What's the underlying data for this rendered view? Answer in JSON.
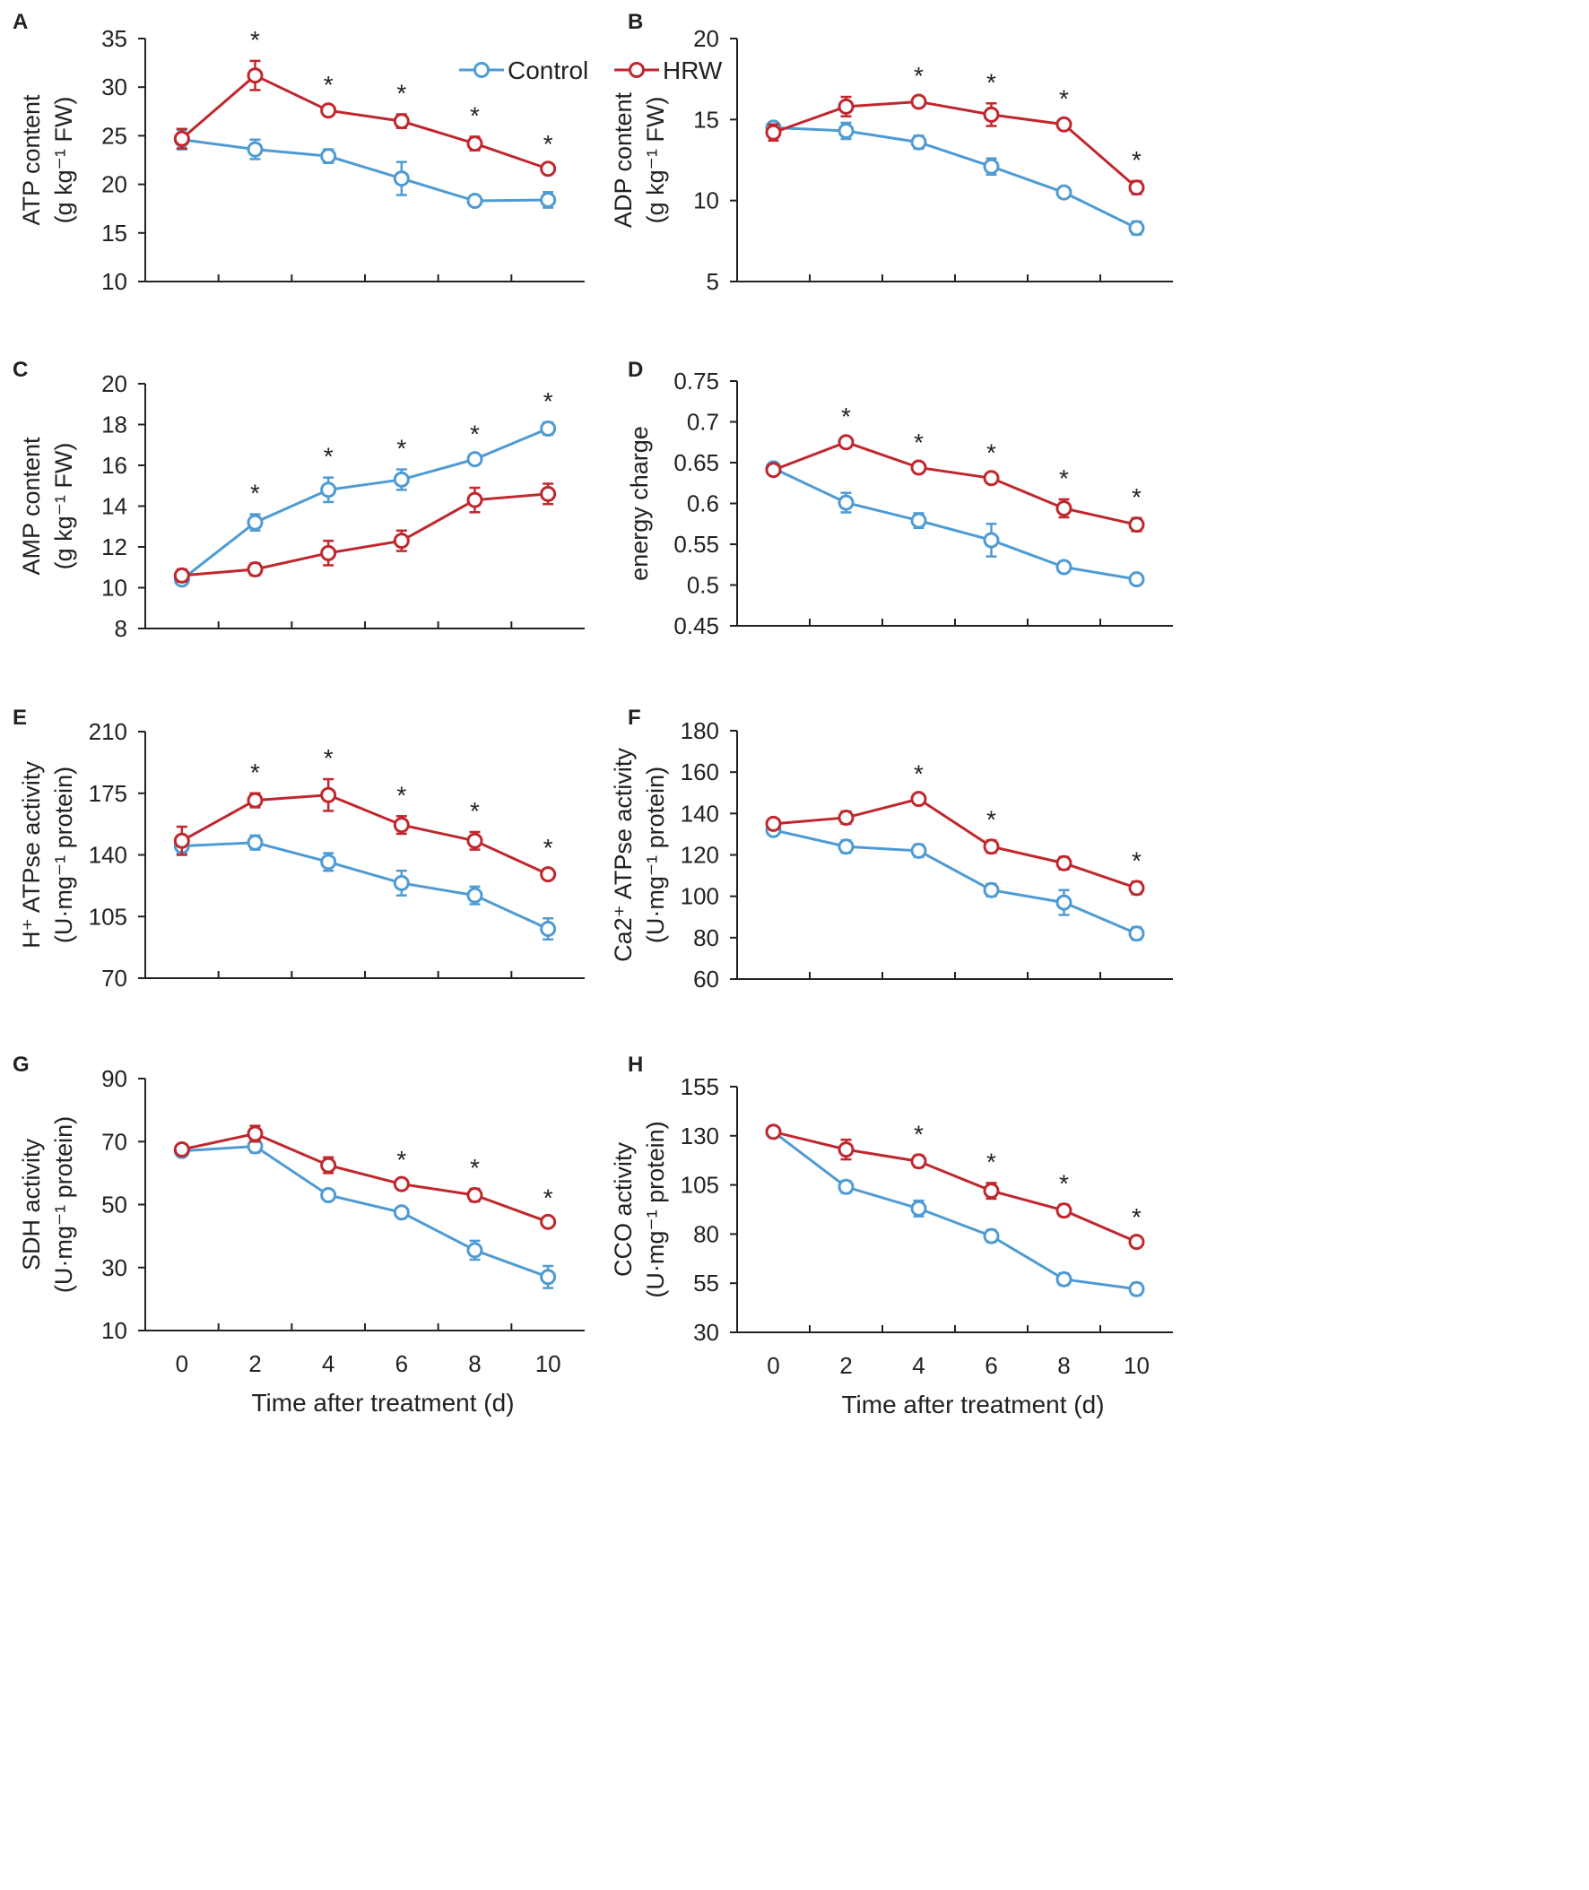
{
  "legend": {
    "items": [
      {
        "name": "Control",
        "color": "#4e9bd4"
      },
      {
        "name": "HRW",
        "color": "#c0272d"
      }
    ]
  },
  "colors": {
    "control": "#4e9bd4",
    "hrw": "#c0272d",
    "axis": "#222222"
  },
  "chart_data": [
    {
      "panel": "A",
      "type": "line",
      "ylabel_lines": [
        "ATP content",
        "(g kg⁻¹ FW)"
      ],
      "xlabel": "",
      "ylim": [
        10,
        35
      ],
      "yticks": [
        "10",
        "15",
        "20",
        "25",
        "30",
        "35"
      ],
      "xticks": [],
      "x": [
        0,
        2,
        4,
        6,
        8,
        10
      ],
      "series": [
        {
          "name": "Control",
          "values": [
            24.6,
            23.6,
            22.9,
            20.6,
            18.3,
            18.4
          ],
          "errors": [
            1.0,
            1.0,
            0.7,
            1.7,
            0.5,
            0.8
          ]
        },
        {
          "name": "HRW",
          "values": [
            24.7,
            31.2,
            27.6,
            26.5,
            24.2,
            21.6
          ],
          "errors": [
            1.0,
            1.5,
            0.5,
            0.7,
            0.7,
            0.4
          ]
        }
      ],
      "significance": [
        "",
        "*",
        "*",
        "*",
        "*",
        "*"
      ]
    },
    {
      "panel": "B",
      "type": "line",
      "ylabel_lines": [
        "ADP content",
        "(g kg⁻¹ FW)"
      ],
      "xlabel": "",
      "ylim": [
        5,
        20
      ],
      "yticks": [
        "5",
        "10",
        "15",
        "20"
      ],
      "xticks": [],
      "x": [
        0,
        2,
        4,
        6,
        8,
        10
      ],
      "series": [
        {
          "name": "Control",
          "values": [
            14.5,
            14.3,
            13.6,
            12.1,
            10.5,
            8.3
          ],
          "errors": [
            0.3,
            0.5,
            0.4,
            0.5,
            0.3,
            0.4
          ]
        },
        {
          "name": "HRW",
          "values": [
            14.2,
            15.8,
            16.1,
            15.3,
            14.7,
            10.8
          ],
          "errors": [
            0.5,
            0.6,
            0.3,
            0.7,
            0.3,
            0.4
          ]
        }
      ],
      "significance": [
        "",
        "",
        "*",
        "*",
        "*",
        "*"
      ]
    },
    {
      "panel": "C",
      "type": "line",
      "ylabel_lines": [
        "AMP content",
        "(g kg⁻¹ FW)"
      ],
      "xlabel": "",
      "ylim": [
        8,
        20
      ],
      "yticks": [
        "8",
        "10",
        "12",
        "14",
        "16",
        "18",
        "20"
      ],
      "xticks": [],
      "x": [
        0,
        2,
        4,
        6,
        8,
        10
      ],
      "series": [
        {
          "name": "Control",
          "values": [
            10.4,
            13.2,
            14.8,
            15.3,
            16.3,
            17.8
          ],
          "errors": [
            0.2,
            0.4,
            0.6,
            0.5,
            0.2,
            0.3
          ]
        },
        {
          "name": "HRW",
          "values": [
            10.6,
            10.9,
            11.7,
            12.3,
            14.3,
            14.6
          ],
          "errors": [
            0.3,
            0.3,
            0.6,
            0.5,
            0.6,
            0.5
          ]
        }
      ],
      "significance": [
        "",
        "*",
        "*",
        "*",
        "*",
        "*"
      ]
    },
    {
      "panel": "D",
      "type": "line",
      "ylabel_lines": [
        "energy charge"
      ],
      "xlabel": "",
      "ylim": [
        0.45,
        0.75
      ],
      "yticks": [
        "0.45",
        "0.5",
        "0.55",
        "0.6",
        "0.65",
        "0.7",
        "0.75"
      ],
      "xticks": [],
      "x": [
        0,
        2,
        4,
        6,
        8,
        10
      ],
      "series": [
        {
          "name": "Control",
          "values": [
            0.643,
            0.601,
            0.579,
            0.555,
            0.522,
            0.507
          ],
          "errors": [
            0.005,
            0.012,
            0.009,
            0.02,
            0.005,
            0.005
          ]
        },
        {
          "name": "HRW",
          "values": [
            0.641,
            0.675,
            0.644,
            0.631,
            0.594,
            0.574
          ],
          "errors": [
            0.005,
            0.006,
            0.005,
            0.005,
            0.011,
            0.008
          ]
        }
      ],
      "significance": [
        "",
        "*",
        "*",
        "*",
        "*",
        "*"
      ]
    },
    {
      "panel": "E",
      "type": "line",
      "ylabel_lines": [
        "H⁺ ATPse activity",
        "(U·mg⁻¹ protein)"
      ],
      "xlabel": "",
      "ylim": [
        70,
        210
      ],
      "yticks": [
        "70",
        "105",
        "140",
        "175",
        "210"
      ],
      "xticks": [],
      "x": [
        0,
        2,
        4,
        6,
        8,
        10
      ],
      "series": [
        {
          "name": "Control",
          "values": [
            145,
            147,
            136,
            124,
            117,
            98
          ],
          "errors": [
            4,
            4,
            5,
            7,
            5,
            6
          ]
        },
        {
          "name": "HRW",
          "values": [
            148,
            171,
            174,
            157,
            148,
            129
          ],
          "errors": [
            8,
            4,
            9,
            5,
            5,
            3
          ]
        }
      ],
      "significance": [
        "",
        "*",
        "*",
        "*",
        "*",
        "*"
      ]
    },
    {
      "panel": "F",
      "type": "line",
      "ylabel_lines": [
        "Ca2⁺ ATPse activity",
        "(U·mg⁻¹ protein)"
      ],
      "xlabel": "",
      "ylim": [
        60,
        180
      ],
      "yticks": [
        "60",
        "80",
        "100",
        "120",
        "140",
        "160",
        "180"
      ],
      "xticks": [],
      "x": [
        0,
        2,
        4,
        6,
        8,
        10
      ],
      "series": [
        {
          "name": "Control",
          "values": [
            132,
            124,
            122,
            103,
            97,
            82
          ],
          "errors": [
            2,
            3,
            3,
            3,
            6,
            3
          ]
        },
        {
          "name": "HRW",
          "values": [
            135,
            138,
            147,
            124,
            116,
            104
          ],
          "errors": [
            2,
            3,
            2,
            3,
            3,
            3
          ]
        }
      ],
      "significance": [
        "",
        "",
        "*",
        "*",
        "",
        "*"
      ]
    },
    {
      "panel": "G",
      "type": "line",
      "ylabel_lines": [
        "SDH activity",
        "(U·mg⁻¹ protein)"
      ],
      "xlabel": "Time after treatment (d)",
      "ylim": [
        10,
        90
      ],
      "yticks": [
        "10",
        "30",
        "50",
        "70",
        "90"
      ],
      "xticks": [
        "0",
        "2",
        "4",
        "6",
        "8",
        "10"
      ],
      "x": [
        0,
        2,
        4,
        6,
        8,
        10
      ],
      "series": [
        {
          "name": "Control",
          "values": [
            67,
            68.5,
            53,
            47.5,
            35.5,
            27
          ],
          "errors": [
            1,
            2,
            1,
            1,
            3,
            3.5
          ]
        },
        {
          "name": "HRW",
          "values": [
            67.5,
            72.5,
            62.5,
            56.5,
            53,
            44.5
          ],
          "errors": [
            1,
            2.5,
            2.5,
            1,
            2,
            1
          ]
        }
      ],
      "significance": [
        "",
        "",
        "",
        "*",
        "*",
        "*"
      ]
    },
    {
      "panel": "H",
      "type": "line",
      "ylabel_lines": [
        "CCO activity",
        "(U·mg⁻¹ protein)"
      ],
      "xlabel": "Time after treatment (d)",
      "ylim": [
        30,
        155
      ],
      "yticks": [
        "30",
        "55",
        "80",
        "105",
        "130",
        "155"
      ],
      "xticks": [
        "0",
        "2",
        "4",
        "6",
        "8",
        "10"
      ],
      "x": [
        0,
        2,
        4,
        6,
        8,
        10
      ],
      "series": [
        {
          "name": "Control",
          "values": [
            132,
            104,
            93,
            79,
            57,
            52
          ],
          "errors": [
            2,
            3,
            4,
            3,
            3,
            3
          ]
        },
        {
          "name": "HRW",
          "values": [
            132,
            123,
            117,
            102,
            92,
            76
          ],
          "errors": [
            2,
            5,
            3,
            4,
            3,
            2
          ]
        }
      ],
      "significance": [
        "",
        "",
        "*",
        "*",
        "*",
        "*"
      ]
    }
  ]
}
